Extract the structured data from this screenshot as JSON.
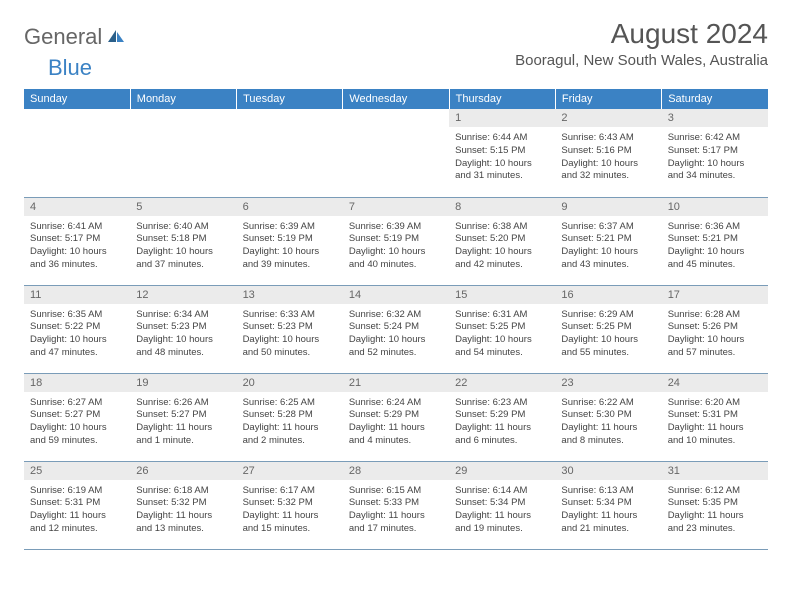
{
  "logo": {
    "textGeneral": "General",
    "textBlue": "Blue"
  },
  "title": "August 2024",
  "location": "Booragul, New South Wales, Australia",
  "colors": {
    "headerBg": "#3b82c4",
    "dayNumBg": "#ebebeb",
    "rowBorder": "#7a9cb8",
    "textMuted": "#666666",
    "textBody": "#444444"
  },
  "weekdays": [
    "Sunday",
    "Monday",
    "Tuesday",
    "Wednesday",
    "Thursday",
    "Friday",
    "Saturday"
  ],
  "startOffset": 4,
  "days": [
    {
      "n": 1,
      "sr": "6:44 AM",
      "ss": "5:15 PM",
      "dl": "10 hours and 31 minutes."
    },
    {
      "n": 2,
      "sr": "6:43 AM",
      "ss": "5:16 PM",
      "dl": "10 hours and 32 minutes."
    },
    {
      "n": 3,
      "sr": "6:42 AM",
      "ss": "5:17 PM",
      "dl": "10 hours and 34 minutes."
    },
    {
      "n": 4,
      "sr": "6:41 AM",
      "ss": "5:17 PM",
      "dl": "10 hours and 36 minutes."
    },
    {
      "n": 5,
      "sr": "6:40 AM",
      "ss": "5:18 PM",
      "dl": "10 hours and 37 minutes."
    },
    {
      "n": 6,
      "sr": "6:39 AM",
      "ss": "5:19 PM",
      "dl": "10 hours and 39 minutes."
    },
    {
      "n": 7,
      "sr": "6:39 AM",
      "ss": "5:19 PM",
      "dl": "10 hours and 40 minutes."
    },
    {
      "n": 8,
      "sr": "6:38 AM",
      "ss": "5:20 PM",
      "dl": "10 hours and 42 minutes."
    },
    {
      "n": 9,
      "sr": "6:37 AM",
      "ss": "5:21 PM",
      "dl": "10 hours and 43 minutes."
    },
    {
      "n": 10,
      "sr": "6:36 AM",
      "ss": "5:21 PM",
      "dl": "10 hours and 45 minutes."
    },
    {
      "n": 11,
      "sr": "6:35 AM",
      "ss": "5:22 PM",
      "dl": "10 hours and 47 minutes."
    },
    {
      "n": 12,
      "sr": "6:34 AM",
      "ss": "5:23 PM",
      "dl": "10 hours and 48 minutes."
    },
    {
      "n": 13,
      "sr": "6:33 AM",
      "ss": "5:23 PM",
      "dl": "10 hours and 50 minutes."
    },
    {
      "n": 14,
      "sr": "6:32 AM",
      "ss": "5:24 PM",
      "dl": "10 hours and 52 minutes."
    },
    {
      "n": 15,
      "sr": "6:31 AM",
      "ss": "5:25 PM",
      "dl": "10 hours and 54 minutes."
    },
    {
      "n": 16,
      "sr": "6:29 AM",
      "ss": "5:25 PM",
      "dl": "10 hours and 55 minutes."
    },
    {
      "n": 17,
      "sr": "6:28 AM",
      "ss": "5:26 PM",
      "dl": "10 hours and 57 minutes."
    },
    {
      "n": 18,
      "sr": "6:27 AM",
      "ss": "5:27 PM",
      "dl": "10 hours and 59 minutes."
    },
    {
      "n": 19,
      "sr": "6:26 AM",
      "ss": "5:27 PM",
      "dl": "11 hours and 1 minute."
    },
    {
      "n": 20,
      "sr": "6:25 AM",
      "ss": "5:28 PM",
      "dl": "11 hours and 2 minutes."
    },
    {
      "n": 21,
      "sr": "6:24 AM",
      "ss": "5:29 PM",
      "dl": "11 hours and 4 minutes."
    },
    {
      "n": 22,
      "sr": "6:23 AM",
      "ss": "5:29 PM",
      "dl": "11 hours and 6 minutes."
    },
    {
      "n": 23,
      "sr": "6:22 AM",
      "ss": "5:30 PM",
      "dl": "11 hours and 8 minutes."
    },
    {
      "n": 24,
      "sr": "6:20 AM",
      "ss": "5:31 PM",
      "dl": "11 hours and 10 minutes."
    },
    {
      "n": 25,
      "sr": "6:19 AM",
      "ss": "5:31 PM",
      "dl": "11 hours and 12 minutes."
    },
    {
      "n": 26,
      "sr": "6:18 AM",
      "ss": "5:32 PM",
      "dl": "11 hours and 13 minutes."
    },
    {
      "n": 27,
      "sr": "6:17 AM",
      "ss": "5:32 PM",
      "dl": "11 hours and 15 minutes."
    },
    {
      "n": 28,
      "sr": "6:15 AM",
      "ss": "5:33 PM",
      "dl": "11 hours and 17 minutes."
    },
    {
      "n": 29,
      "sr": "6:14 AM",
      "ss": "5:34 PM",
      "dl": "11 hours and 19 minutes."
    },
    {
      "n": 30,
      "sr": "6:13 AM",
      "ss": "5:34 PM",
      "dl": "11 hours and 21 minutes."
    },
    {
      "n": 31,
      "sr": "6:12 AM",
      "ss": "5:35 PM",
      "dl": "11 hours and 23 minutes."
    }
  ],
  "labels": {
    "sunrise": "Sunrise:",
    "sunset": "Sunset:",
    "daylight": "Daylight:"
  }
}
